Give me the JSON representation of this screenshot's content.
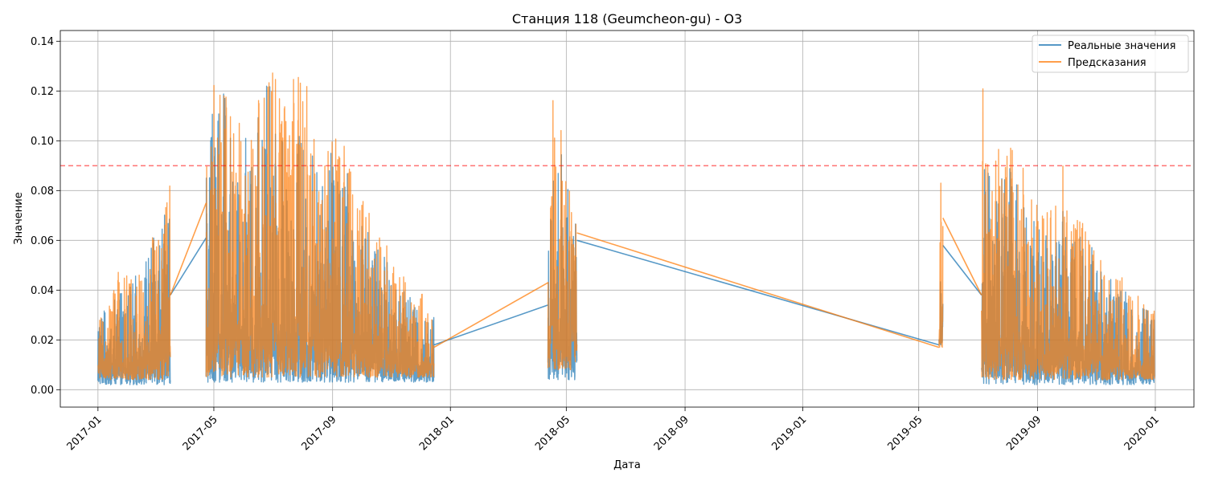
{
  "chart_data": {
    "type": "line",
    "title": "Станция 118 (Geumcheon-gu) - O3",
    "xlabel": "Дата",
    "ylabel": "Значение",
    "x_type": "date",
    "xlim": [
      "2016-11-23",
      "2020-02-10"
    ],
    "ylim": [
      -0.007,
      0.1443
    ],
    "x_ticks": [
      "2017-01",
      "2017-05",
      "2017-09",
      "2018-01",
      "2018-05",
      "2018-09",
      "2019-01",
      "2019-05",
      "2019-09",
      "2020-01"
    ],
    "y_ticks": [
      0.0,
      0.02,
      0.04,
      0.06,
      0.08,
      0.1,
      0.12,
      0.14
    ],
    "y_tick_labels": [
      "0.00",
      "0.02",
      "0.04",
      "0.06",
      "0.08",
      "0.10",
      "0.12",
      "0.14"
    ],
    "grid": true,
    "legend_position": "top-right",
    "threshold": {
      "y": 0.09,
      "color": "#ff0000",
      "style": "dashed"
    },
    "series": [
      {
        "name": "Реальные значения",
        "color": "#1f77b4",
        "segments": [
          {
            "start": "2017-01-01",
            "end": "2017-03-17",
            "base": 0.002,
            "peaks": [
              0.036,
              0.03,
              0.041,
              0.044,
              0.046,
              0.05,
              0.06,
              0.066,
              0.08
            ]
          },
          {
            "start": "2017-04-23",
            "end": "2017-12-15",
            "base": 0.003,
            "peaks": [
              0.098,
              0.128,
              0.123,
              0.115,
              0.105,
              0.11,
              0.125,
              0.119,
              0.118,
              0.112,
              0.108,
              0.09,
              0.094,
              0.1,
              0.092,
              0.085,
              0.072,
              0.06,
              0.055,
              0.048,
              0.042,
              0.038,
              0.035,
              0.03
            ]
          },
          {
            "start": "2018-04-12",
            "end": "2018-05-12",
            "base": 0.004,
            "peaks": [
              0.065,
              0.092,
              0.102,
              0.11,
              0.09,
              0.082,
              0.085,
              0.06
            ]
          },
          {
            "start": "2019-05-22",
            "end": "2019-05-26",
            "base": 0.018,
            "peaks": [
              0.04,
              0.07,
              0.055
            ]
          },
          {
            "start": "2019-07-05",
            "end": "2019-12-31",
            "base": 0.002,
            "peaks": [
              0.118,
              0.08,
              0.09,
              0.095,
              0.078,
              0.075,
              0.07,
              0.068,
              0.072,
              0.065,
              0.06,
              0.058,
              0.05,
              0.045,
              0.04,
              0.036,
              0.033,
              0.03
            ]
          }
        ],
        "connectors": [
          {
            "from": [
              "2017-03-17",
              0.038
            ],
            "to": [
              "2017-04-23",
              0.061
            ]
          },
          {
            "from": [
              "2017-12-15",
              0.018
            ],
            "to": [
              "2018-04-12",
              0.034
            ]
          },
          {
            "from": [
              "2018-05-12",
              0.06
            ],
            "to": [
              "2019-05-22",
              0.018
            ]
          },
          {
            "from": [
              "2019-05-26",
              0.058
            ],
            "to": [
              "2019-07-05",
              0.038
            ]
          }
        ]
      },
      {
        "name": "Предсказания",
        "color": "#ff7f0e",
        "segments": [
          {
            "start": "2017-01-01",
            "end": "2017-03-17",
            "base": 0.004,
            "peaks": [
              0.035,
              0.031,
              0.05,
              0.046,
              0.045,
              0.05,
              0.065,
              0.066,
              0.089
            ]
          },
          {
            "start": "2017-04-23",
            "end": "2017-12-15",
            "base": 0.005,
            "peaks": [
              0.1,
              0.136,
              0.13,
              0.114,
              0.106,
              0.112,
              0.137,
              0.129,
              0.132,
              0.124,
              0.13,
              0.1,
              0.106,
              0.106,
              0.099,
              0.09,
              0.079,
              0.068,
              0.06,
              0.052,
              0.046,
              0.04,
              0.038,
              0.031
            ]
          },
          {
            "start": "2018-04-12",
            "end": "2018-05-12",
            "base": 0.008,
            "peaks": [
              0.07,
              0.118,
              0.11,
              0.116,
              0.098,
              0.095,
              0.098,
              0.065
            ]
          },
          {
            "start": "2019-05-22",
            "end": "2019-05-26",
            "base": 0.017,
            "peaks": [
              0.048,
              0.086,
              0.07
            ]
          },
          {
            "start": "2019-07-05",
            "end": "2019-12-31",
            "base": 0.004,
            "peaks": [
              0.131,
              0.088,
              0.11,
              0.104,
              0.09,
              0.08,
              0.074,
              0.072,
              0.104,
              0.072,
              0.068,
              0.062,
              0.055,
              0.05,
              0.045,
              0.039,
              0.036,
              0.034
            ]
          }
        ],
        "connectors": [
          {
            "from": [
              "2017-03-17",
              0.038
            ],
            "to": [
              "2017-04-23",
              0.075
            ]
          },
          {
            "from": [
              "2017-12-15",
              0.017
            ],
            "to": [
              "2018-04-12",
              0.043
            ]
          },
          {
            "from": [
              "2018-05-12",
              0.063
            ],
            "to": [
              "2019-05-22",
              0.017
            ]
          },
          {
            "from": [
              "2019-05-26",
              0.069
            ],
            "to": [
              "2019-07-05",
              0.038
            ]
          }
        ]
      }
    ]
  }
}
